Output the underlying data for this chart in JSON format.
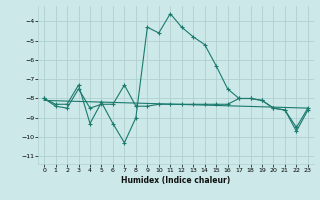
{
  "xlabel": "Humidex (Indice chaleur)",
  "ylabel": "",
  "bg_color": "#cce8e8",
  "grid_color": "#b0d0d0",
  "line_color": "#1a7a6e",
  "xlim": [
    -0.5,
    23.5
  ],
  "ylim": [
    -11.4,
    -3.2
  ],
  "yticks": [
    -11,
    -10,
    -9,
    -8,
    -7,
    -6,
    -5,
    -4
  ],
  "xticks": [
    0,
    1,
    2,
    3,
    4,
    5,
    6,
    7,
    8,
    9,
    10,
    11,
    12,
    13,
    14,
    15,
    16,
    17,
    18,
    19,
    20,
    21,
    22,
    23
  ],
  "line1_x": [
    0,
    1,
    2,
    3,
    4,
    5,
    6,
    7,
    8,
    9,
    10,
    11,
    12,
    13,
    14,
    15,
    16,
    17,
    18,
    19,
    20,
    21,
    22,
    23
  ],
  "line1_y": [
    -8.0,
    -8.3,
    -8.3,
    -7.3,
    -9.3,
    -8.2,
    -9.3,
    -10.3,
    -9.0,
    -4.3,
    -4.6,
    -3.6,
    -4.3,
    -4.8,
    -5.2,
    -6.3,
    -7.5,
    -8.0,
    -8.0,
    -8.1,
    -8.5,
    -8.6,
    -9.7,
    -8.6
  ],
  "line2_x": [
    0,
    1,
    2,
    3,
    4,
    5,
    6,
    7,
    8,
    9,
    10,
    11,
    12,
    13,
    14,
    15,
    16,
    17,
    18,
    19,
    20,
    21,
    22,
    23
  ],
  "line2_y": [
    -8.0,
    -8.4,
    -8.5,
    -7.5,
    -8.5,
    -8.3,
    -8.3,
    -7.3,
    -8.4,
    -8.4,
    -8.3,
    -8.3,
    -8.3,
    -8.3,
    -8.3,
    -8.3,
    -8.3,
    -8.0,
    -8.0,
    -8.1,
    -8.5,
    -8.6,
    -9.5,
    -8.5
  ],
  "line3_x": [
    0,
    23
  ],
  "line3_y": [
    -8.1,
    -8.5
  ],
  "tick_fontsize": 4.5,
  "label_fontsize": 5.5
}
